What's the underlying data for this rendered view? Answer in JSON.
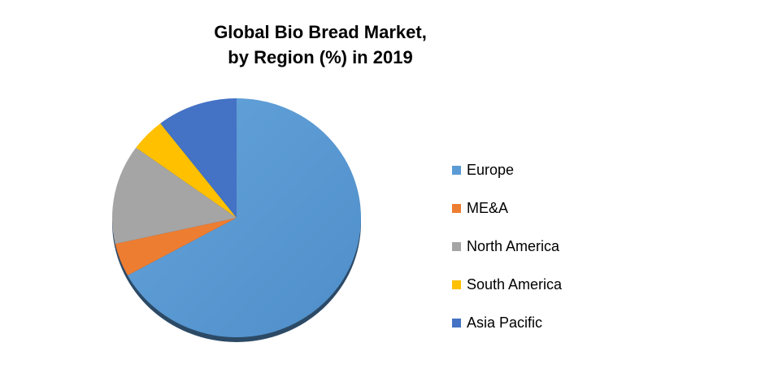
{
  "chart_data": {
    "type": "pie",
    "title_line1": "Global Bio Bread Market,",
    "title_line2": "by Region (%) in 2019",
    "slices": [
      {
        "name": "Europe",
        "value": 67,
        "color": "#5b9bd5"
      },
      {
        "name": "ME&A",
        "value": 4.5,
        "color": "#ed7d31"
      },
      {
        "name": "North America",
        "value": 13.5,
        "color": "#a5a5a5"
      },
      {
        "name": "South America",
        "value": 4.5,
        "color": "#ffc000"
      },
      {
        "name": "Asia Pacific",
        "value": 10.5,
        "color": "#4472c4"
      }
    ],
    "legend_position": "right"
  }
}
